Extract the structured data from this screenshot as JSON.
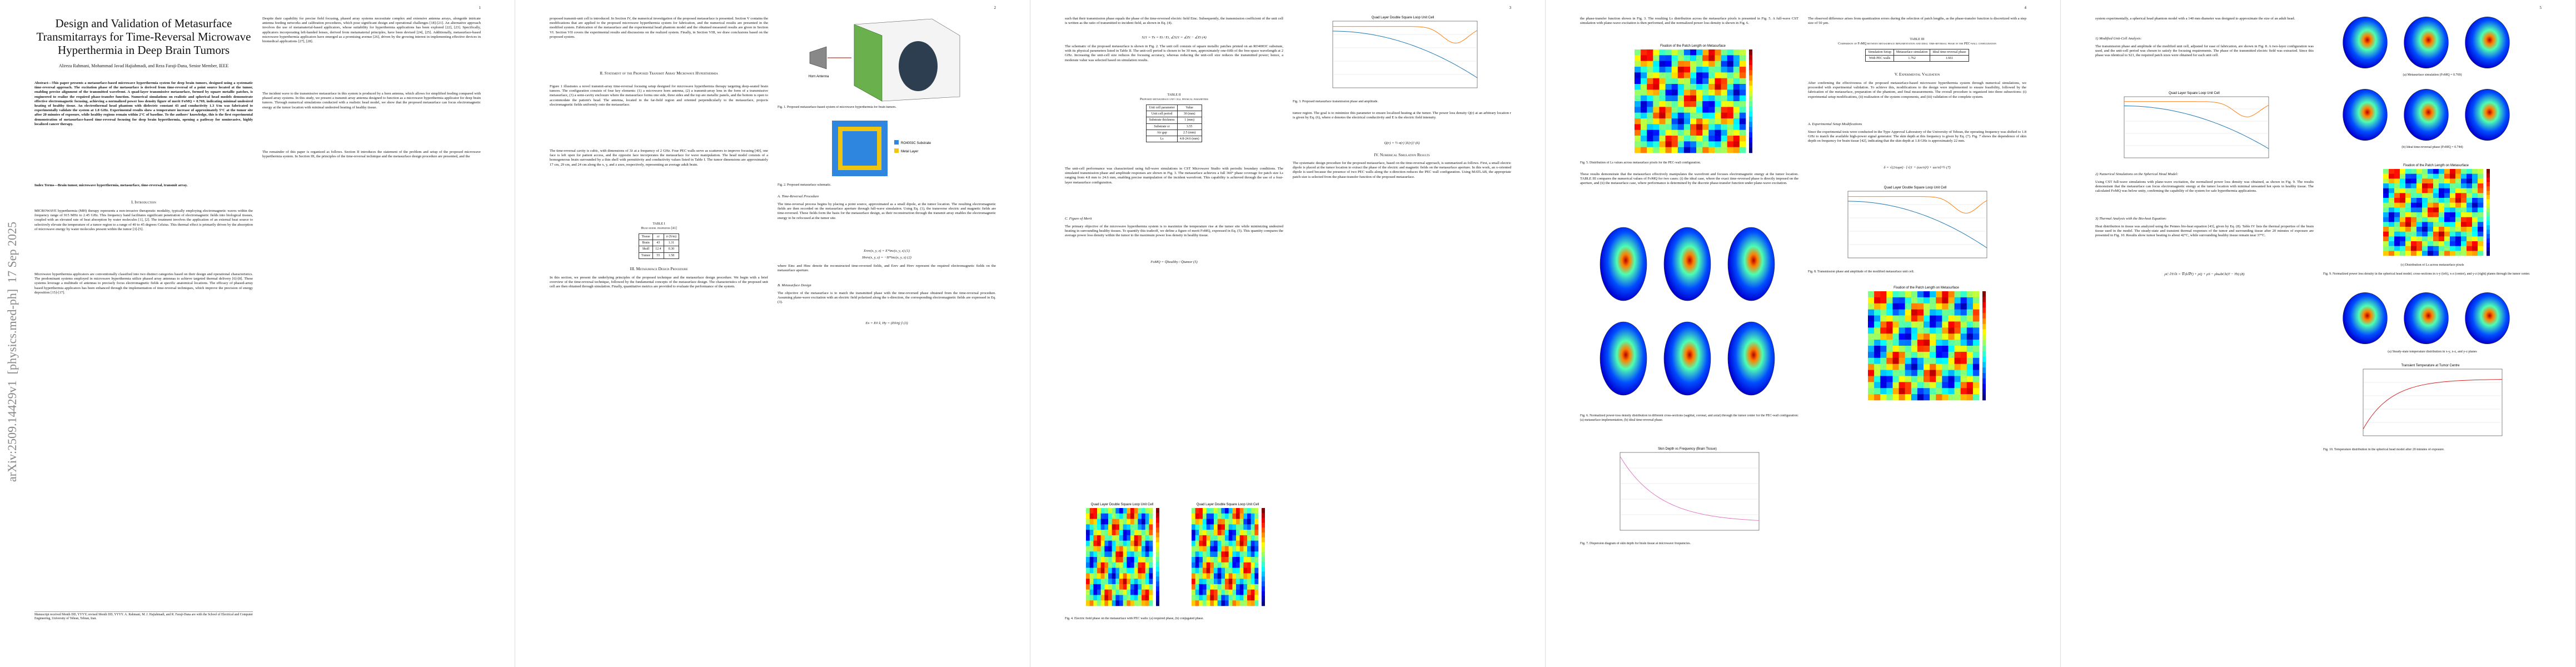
{
  "arxiv_stamp": "arXiv:2509.14429v1  [physics.med-ph]  17 Sep 2025",
  "pages": [
    {
      "number": "1",
      "title": "Design and Validation of Metasurface Transmitarrays for Time-Reversal Microwave Hyperthermia in Deep Brain Tumors",
      "authors": "Alireza Rahmani, Mohammad Javad Hajiahmadi, and Reza Faraji-Dana, Senior Member, IEEE",
      "abstract": "Abstract—This paper presents a metasurface-based microwave hyperthermia system for deep brain tumors, designed using a systematic time-reversal approach. The excitation phase of the metasurface is derived from time-reversal of a point source located at the tumor, enabling precise alignment of the transmitted wavefront. A quad-layer transmissive metasurface, formed by square metallic patches, is engineered to realize the required phase-transfer function. Numerical simulations on realistic and spherical head models demonstrate effective electromagnetic focusing, achieving a normalized power loss density figure of merit FoMQ = 0.769, indicating minimal undesired heating of healthy tissue. An electrothermal head phantom with dielectric constant 43 and conductivity 1.3 S/m was fabricated to experimentally validate the system at 1.8 GHz. Experimental results show a temperature increase of approximately 5°C at the tumor site after 20 minutes of exposure, while healthy regions remain within 2°C of baseline. To the authors' knowledge, this is the first experimental demonstration of metasurface-based time-reversal focusing for deep brain hyperthermia, opening a pathway for noninvasive, highly localized cancer therapy.",
      "index_terms": "Index Terms—Brain tumor, microwave hyperthermia, metasurface, time-reversal, transmit array.",
      "heading": "I. Introduction",
      "paragraphs": [
        "MICROWAVE hyperthermia (MH) therapy represents a non-invasive therapeutic modality, typically employing electromagnetic waves within the frequency range of 915 MHz to 2.45 GHz. This frequency band facilitates significant penetration of electromagnetic fields into biological tissues, coupled with an elevated rate of heat absorption by water molecules [1], [2]. The treatment involves the application of an external heat source to selectively elevate the temperature of a tumor region to a range of 40 to 45 degrees Celsius. This thermal effect is primarily driven by the absorption of microwave energy by water molecules present within the tumor [3]-[5].",
        "Microwave hyperthermia applicators are conventionally classified into two distinct categories based on their design and operational characteristics. The predominant systems employed in microwave hyperthermia utilize phased array antennas to achieve targeted thermal delivery [6]-[8]. These systems leverage a multitude of antennas to precisely focus electromagnetic fields at specific anatomical locations. The efficacy of phased-array based hyperthermia applicators has been enhanced through the implementation of time-reversal techniques, which improve the precision of energy deposition [15]-[17].",
        "Despite their capability for precise field focusing, phased array systems necessitate complex and extensive antenna arrays, alongside intricate antenna feeding networks and calibration procedures, which pose significant design and operational challenges [18]-[21]. An alternative approach involves the use of metamaterial-based applicators, whose suitability for hyperthermia applications has been explored [22], [23]. Specifically, applicators incorporating left-handed lenses, derived from metamaterial principles, have been devised [24], [25]. Additionally, metasurface-based microwave hyperthermia applicators have emerged as a promising avenue [26], driven by the growing interest in implementing effective devices in biomedical applications [27], [28].",
        "The incident wave to the transmissive metasurface in this system is produced by a horn antenna, which allows for simplified feeding compared with phased array systems. In this study, we present a transmit array antenna designed to function as a microwave hyperthermia applicator for deep brain tumors. Through numerical simulations conducted with a realistic head model, we show that the proposed metasurface can focus electromagnetic energy at the tumor location with minimal undesired heating of healthy tissue.",
        "The remainder of this paper is organized as follows. Section II introduces the statement of the problem and setup of the proposed microwave hyperthermia system. In Section III, the principles of the time-reversal technique and the metasurface design procedure are presented, and the"
      ],
      "footnote": "Manuscript received Month DD, YYYY; revised Month DD, YYYY. A. Rahmani, M. J. Hajiahmadi, and R. Faraji-Dana are with the School of Electrical and Computer Engineering, University of Tehran, Tehran, Iran."
    },
    {
      "number": "2",
      "headings": [
        "II. Statement of the Proposed Transmit Array Microwave Hyperthermia",
        "III. Metasurface Design Procedure",
        "A. Time-Reversal Procedure",
        "B. Metasurface Design"
      ],
      "paragraphs": [
        "proposed transmit-unit cell is introduced. In Section IV, the numerical investigation of the proposed metasurface is presented. Section V contains the modifications that are applied to the proposed microwave hyperthermia system for fabrication, and the numerical results are presented in the modified system. Fabrication of the metasurface and the experimental head phantom model and the obtained measured results are given in Section VI. Section VII covers the experimental results and discussions on the realized system. Finally, in Section VIII, we draw conclusions based on the proposed system.",
        "Figure 1 illustrates a novel transmit-array time-reversal focusing setup designed for microwave hyperthermia therapy targeting deep-seated brain tumors. The configuration consists of four key elements: (1) a microwave horn antenna, (2) a transmit-array lens in the form of a transmissive metasurface, (3) a semi-cavity enclosure where the metasurface forms one side, three sides and the top are metallic panels, and the bottom is open to accommodate the patient's head. The antenna, located in the far-field region and oriented perpendicularly to the metasurface, projects electromagnetic fields uniformly onto the metasurface.",
        "The time-reversal cavity is cubic, with dimensions of 3λ at a frequency of 2 GHz. Four PEC walls serve as scatterers to improve focusing [40], one face is left open for patient access, and the opposite face incorporates the metasurface for wave manipulation. The head model consists of a homogeneous brain surrounded by a thin shell with permittivity and conductivity values listed in Table I. The tumor dimensions are approximately 17 cm, 29 cm, and 24 cm along the x, y, and z axes, respectively, representing an average adult brain.",
        "In this section, we present the underlying principles of the proposed technique and the metasurface design procedure. We begin with a brief overview of the time-reversal technique, followed by the fundamental concepts of the metasurface design. The characteristics of the proposed unit cell are then obtained through simulation. Finally, quantitative metrics are provided to evaluate the performance of the system.",
        "The time-reversal process begins by placing a point source, approximated as a small dipole, at the tumor location. The resulting electromagnetic fields are then recorded on the metasurface aperture through full-wave simulation. Using Eq. (1), the transverse electric and magnetic fields are time-reversed. These fields form the basis for the metasurface design, as their reconstruction through the transmit array enables the electromagnetic energy to be refocused at the tumor site.",
        "where Einc and Hinc denote the reconstructed time-reversed fields, and Erev and Hrev represent the required electromagnetic fields on the metasurface aperture.",
        "The objective of the metasurface is to match the transmitted phase with the time-reversed phase obtained from the time-reversal procedure. Assuming plane-wave excitation with an electric field polarized along the x-direction, the corresponding electromagnetic fields are expressed in Eq. (3)."
      ],
      "equations": [
        "Erev(x, y, z) = E*inc(x, y, z)   (1)",
        "Hrev(x, y, z) = −H*inc(x, y, z)   (2)",
        "Ex = E0 x̂,   Hy = (E0/η) ŷ   (3)"
      ],
      "table_title": "TABLE I\nHead model properties [41]",
      "table": [
        [
          "Tissue",
          "εr",
          "σ (S/m)"
        ],
        [
          "Brain",
          "43",
          "1.31"
        ],
        [
          "Skull",
          "12.4",
          "0.30"
        ],
        [
          "Tumor",
          "55",
          "1.58"
        ]
      ],
      "figure_captions": [
        "Fig. 1. Proposed metasurface-based system of microwave hyperthermia for brain tumors.",
        "Fig. 2. Proposed metasurface schematic."
      ],
      "figure_labels": [
        "Horn Antenna",
        "RO4003C Substrate",
        "Metal Layer"
      ]
    },
    {
      "number": "3",
      "headings": [
        "IV. Numerical Simulation Results",
        "C. Figure of Merit"
      ],
      "paragraphs": [
        "such that their transmission phase equals the phase of the time-reversed electric field Einc. Subsequently, the transmission coefficient of the unit cell is written as the ratio of transmitted to incident field, as shown in Eq. (4).",
        "The schematic of the proposed metasurface is shown in Fig. 2. The unit cell consists of square metallic patches printed on an RO4003C substrate, with its physical parameters listed in Table II. The unit-cell period is chosen to be 30 mm, approximately one-fifth of the free-space wavelength at 2 GHz. Increasing the unit-cell size reduces the focusing accuracy, whereas reducing the unit-cell size reduces the transmitted power; hence, a moderate value was selected based on simulation results.",
        "The unit-cell performance was characterized using full-wave simulations in CST Microwave Studio with periodic boundary conditions. The simulated transmission phase and amplitude responses are shown in Fig. 3. The metasurface achieves a full 360° phase coverage for patch size Ls ranging from 4.8 mm to 24.6 mm, enabling precise manipulation of the incident wavefront. This capability is achieved through the use of a four-layer metasurface configuration.",
        "The primary objective of the microwave hyperthermia system is to maximize the temperature rise at the tumor site while minimizing undesired heating in surrounding healthy tissues. To quantify this tradeoff, we define a figure of merit FoMQ, expressed in Eq. (5). This quantity compares the average power loss density within the tumor to the maximum power loss density in healthy tissue.",
        "tumor region. The goal is to minimize this parameter to ensure localized heating at the tumor. The power loss density Q(r) at an arbitrary location r is given by Eq. (6), where σ denotes the electrical conductivity and E is the electric field intensity.",
        "The systematic design procedure for the proposed metasurface, based on the time-reversal approach, is summarized as follows. First, a small electric dipole is placed at the tumor location to extract the phase of the electric and magnetic fields on the metasurface aperture. In this work, an x-oriented dipole is used because the presence of two PEC walls along the x-direction reduces the PEC wall configuration. Using MATLAB, the appropriate patch size is selected from the phase-transfer function of the proposed metasurface."
      ],
      "equations": [
        "S21 = Tx = Et / Ei,   ∠S21 = ∠Et − ∠Ei   (4)",
        "FoMQ = Q̄healthy / Q̄tumor   (5)",
        "Q(r) = ½ σ(r) |E(r)|²   (6)"
      ],
      "table_title": "TABLE II\nProposed metasurface unit cell physical parameters",
      "table": [
        [
          "Unit cell parameter",
          "Value"
        ],
        [
          "Unit cell period",
          "30 (mm)"
        ],
        [
          "Substrate thickness",
          "1 (mm)"
        ],
        [
          "Substrate εr",
          "3.55"
        ],
        [
          "Air gap",
          "2.5 (mm)"
        ],
        [
          "Ls",
          "4.8-24.6 (mm)"
        ]
      ],
      "plot_title": "Quad Layer Double Square Loop Unit Cell",
      "figure_captions": [
        "Fig. 3. Proposed metasurface transmission phase and amplitude.",
        "Fig. 4. Electric field phase on the metasurface with PEC walls: (a) required phase, (b) conjugated phase."
      ]
    },
    {
      "number": "4",
      "headings": [
        "V. Experimental Validation",
        "A. Experimental Setup Modifications"
      ],
      "paragraphs": [
        "the phase-transfer function shown in Fig. 3. The resulting Ls distribution across the metasurface pixels is presented in Fig. 5. A full-wave CST simulation with plane-wave excitation is then performed, and the normalized power loss density is shown in Fig. 6.",
        "These results demonstrate that the metasurface effectively manipulates the wavefront and focuses electromagnetic energy at the tumor location. TABLE III compares the numerical values of FoMQ for two cases: (i) the ideal case, where the exact time-reversed phase is directly imposed on the aperture, and (ii) the metasurface case, where performance is determined by the discrete phase-transfer function under plane-wave excitation.",
        "The observed difference arises from quantization errors during the selection of patch lengths, as the phase-transfer function is discretized with a step size of 50 µm.",
        "After confirming the effectiveness of the proposed metasurface-based microwave hyperthermia system through numerical simulations, we proceeded with experimental validation. To achieve this, modifications to the design were implemented to ensure feasibility, followed by the fabrication of the metasurface, preparation of the phantom, and final measurements. The overall procedure is organized into three subsections: (i) experimental setup modifications, (ii) realization of the system components, and (iii) validation of the complete system.",
        "Since the experimental tests were conducted in the Type Approval Laboratory of the University of Tehran, the operating frequency was shifted to 1.8 GHz to match the available high-power signal generator. The skin depth at this frequency is given by Eq. (7). Fig. 7 shows the dependence of skin depth on frequency for brain tissue [42], indicating that the skin depth at 1.8 GHz is approximately 22 mm."
      ],
      "table_title": "TABLE III\nComparison of FoMQ between metasurface implementation and ideal time-reversal phase in the PEC-wall configuration",
      "table": [
        [
          "Simulation Setup",
          "Metasurface simulation",
          "Ideal time-reversal phase"
        ],
        [
          "With PEC walls",
          "1.762",
          "1.661"
        ]
      ],
      "equations": [
        "δ = √(2/ωμσ) · [√(1 + (ωε/σ)²) + ωε/σ]^½   (7)"
      ],
      "plot_titles": [
        "Fixation of the Patch Length on Metasurface",
        "Skin Depth vs Frequency (Brain Tissue)",
        "Quad Layer Double Square Loop Unit Cell",
        "Fixation of the Patch Length on Metasurface"
      ],
      "figure_captions": [
        "Fig. 5. Distribution of Ls values across metasurface pixels for the PEC-wall configuration.",
        "Fig. 6. Normalized power-loss density distribution in different cross-sections (sagittal, coronal, and axial) through the tumor center for the PEC-wall configuration: (a) metasurface implementation, (b) ideal time-reversal phase.",
        "Fig. 7. Dispersion diagram of skin depth for brain tissue at microwave frequencies.",
        "Fig. 8. Transmission phase and amplitude of the modified metasurface unit cell."
      ]
    },
    {
      "number": "5",
      "headings": [
        "1) Modified Unit-Cell Analysis:",
        "2) Numerical Simulations on the Spherical Head Model:",
        "3) Thermal Analysis with the Bio-heat Equation:"
      ],
      "paragraphs": [
        "system experimentally, a spherical head phantom model with a 140 mm diameter was designed to approximate the size of an adult head.",
        "The transmission phase and amplitude of the modified unit cell, adjusted for ease of fabrication, are shown in Fig. 8. A two-layer configuration was used, and the unit-cell period was chosen to satisfy the focusing requirements. The phase of the transmitted electric field was extracted. Since this phase was identical to S21, the required patch sizes were obtained for each unit cell.",
        "Using CST full-wave simulations with plane-wave excitation, the normalized power loss density was obtained, as shown in Fig. 9. The results demonstrate that the metasurface can focus electromagnetic energy at the tumor location with minimal unwanted hot spots in healthy tissue. The calculated FoMQ was below unity, confirming the capability of the system for safe hyperthermia applications.",
        "Heat distribution in tissue was analyzed using the Pennes bio-heat equation [43], given by Eq. (8). Table IV lists the thermal properties of the brain tissue used in the model. The steady-state and transient thermal responses of the tumor and surrounding tissue after 20 minutes of exposure are presented in Fig. 10. Results show tumor heating to about 42°C, while surrounding healthy tissue remain near 37°C."
      ],
      "equations": [
        "ρC ∂T/∂t = ∇·(k∇T) + ρQ + ρS − ρbωbCb(T − Tb)   (8)"
      ],
      "plot_titles": [
        "Quad Layer Square Loop Unit Cell",
        "Fixation of the Patch Length on Metasurface",
        "Transient Temperature at Tumor Centre"
      ],
      "subcaptions": [
        "(a) Metasurface simulation (FoMQ = 0.769)",
        "(b) Ideal time-reversal phase (FoMQ = 0.744)",
        "(c) Distribution of Ls across metasurface pixels",
        "(a) Steady-state temperature distribution in x-y, x-z, and y-z planes"
      ],
      "figure_captions": [
        "Fig. 9. Normalized power loss density in the spherical head model; cross-sections in x-y (left), x-z (center), and y-z (right) planes through the tumor center.",
        "Fig. 10. Temperature distribution in the spherical head model after 20 minutes of exposure."
      ]
    }
  ]
}
